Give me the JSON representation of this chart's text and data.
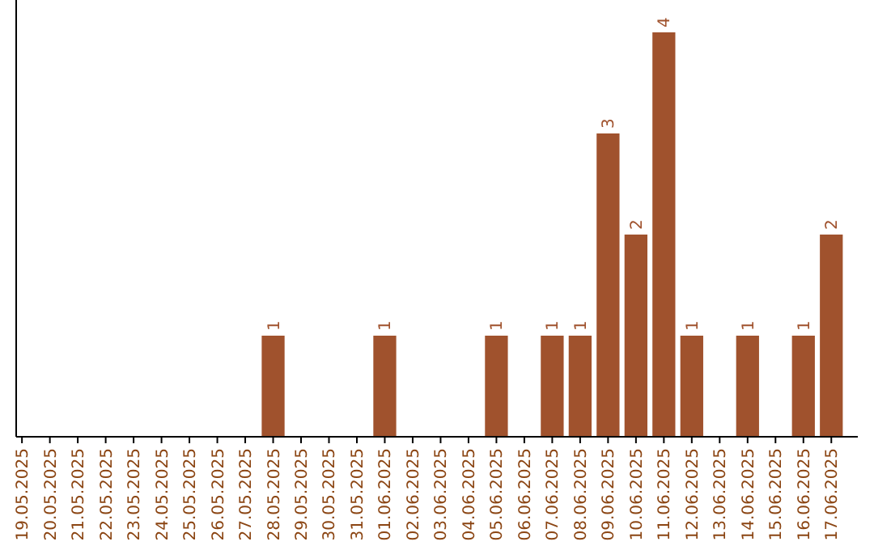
{
  "chart_data": {
    "type": "bar",
    "categories": [
      "19.05.2025",
      "20.05.2025",
      "21.05.2025",
      "22.05.2025",
      "23.05.2025",
      "24.05.2025",
      "25.05.2025",
      "26.05.2025",
      "27.05.2025",
      "28.05.2025",
      "29.05.2025",
      "30.05.2025",
      "31.05.2025",
      "01.06.2025",
      "02.06.2025",
      "03.06.2025",
      "04.06.2025",
      "05.06.2025",
      "06.06.2025",
      "07.06.2025",
      "08.06.2025",
      "09.06.2025",
      "10.06.2025",
      "11.06.2025",
      "12.06.2025",
      "13.06.2025",
      "14.06.2025",
      "15.06.2025",
      "16.06.2025",
      "17.06.2025"
    ],
    "values": [
      0,
      0,
      0,
      0,
      0,
      0,
      0,
      0,
      0,
      1,
      0,
      0,
      0,
      1,
      0,
      0,
      0,
      1,
      0,
      1,
      1,
      3,
      2,
      4,
      1,
      0,
      1,
      0,
      1,
      2
    ],
    "value_labels": [
      null,
      null,
      null,
      null,
      null,
      null,
      null,
      null,
      null,
      "1",
      null,
      null,
      null,
      "1",
      null,
      null,
      null,
      "1",
      null,
      "1",
      "1",
      "3",
      "2",
      "4",
      "1",
      null,
      "1",
      null,
      "1",
      "2"
    ],
    "color": "#a0522d",
    "tick_labels": "x"
  }
}
